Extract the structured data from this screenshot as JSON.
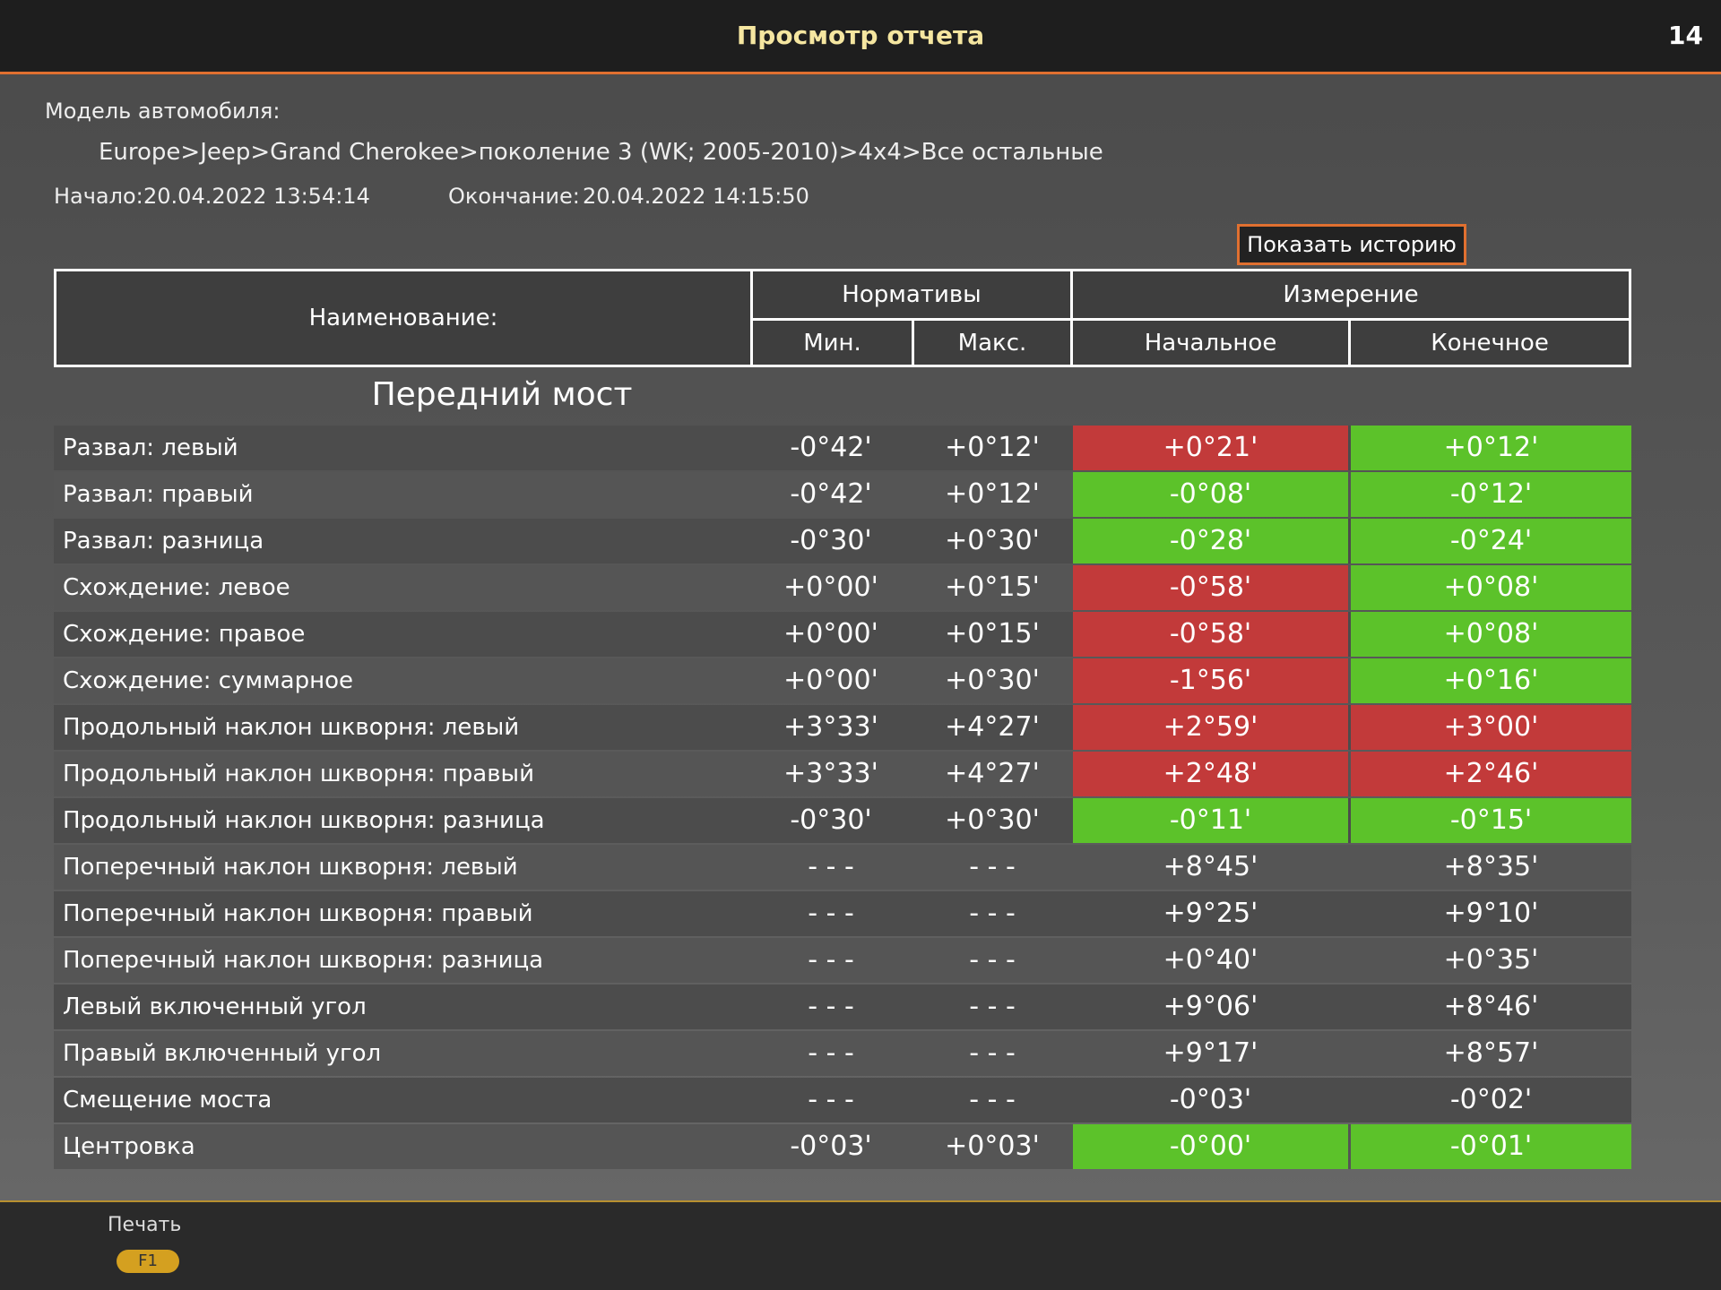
{
  "header": {
    "title": "Просмотр отчета",
    "clock": "14"
  },
  "info": {
    "model_label": "Модель автомобиля:",
    "model_path": "Europe>Jeep>Grand Cherokee>поколение 3 (WK; 2005-2010)>4x4>Все остальные",
    "start_label": "Начало:",
    "start_value": "20.04.2022 13:54:14",
    "end_label": "Окончание:",
    "end_value": "20.04.2022 14:15:50",
    "history_button": "Показать историю"
  },
  "table": {
    "columns": {
      "name": "Наименование:",
      "norms": "Нормативы",
      "min": "Мин.",
      "max": "Макс.",
      "measurement": "Измерение",
      "initial": "Начальное",
      "final": "Конечное"
    },
    "section": "Передний мост",
    "rows": [
      {
        "name": "Развал: левый",
        "min": "-0°42'",
        "max": "+0°12'",
        "initial": "+0°21'",
        "final": "+0°12'",
        "initial_color": "#c23a3a",
        "final_color": "#5cc22a"
      },
      {
        "name": "Развал: правый",
        "min": "-0°42'",
        "max": "+0°12'",
        "initial": "-0°08'",
        "final": "-0°12'",
        "initial_color": "#5cc22a",
        "final_color": "#5cc22a"
      },
      {
        "name": "Развал: разница",
        "min": "-0°30'",
        "max": "+0°30'",
        "initial": "-0°28'",
        "final": "-0°24'",
        "initial_color": "#5cc22a",
        "final_color": "#5cc22a"
      },
      {
        "name": "Схождение: левое",
        "min": "+0°00'",
        "max": "+0°15'",
        "initial": "-0°58'",
        "final": "+0°08'",
        "initial_color": "#c23a3a",
        "final_color": "#5cc22a"
      },
      {
        "name": "Схождение: правое",
        "min": "+0°00'",
        "max": "+0°15'",
        "initial": "-0°58'",
        "final": "+0°08'",
        "initial_color": "#c23a3a",
        "final_color": "#5cc22a"
      },
      {
        "name": "Схождение: суммарное",
        "min": "+0°00'",
        "max": "+0°30'",
        "initial": "-1°56'",
        "final": "+0°16'",
        "initial_color": "#c23a3a",
        "final_color": "#5cc22a"
      },
      {
        "name": "Продольный наклон шкворня: левый",
        "min": "+3°33'",
        "max": "+4°27'",
        "initial": "+2°59'",
        "final": "+3°00'",
        "initial_color": "#c23a3a",
        "final_color": "#c23a3a"
      },
      {
        "name": "Продольный наклон шкворня: правый",
        "min": "+3°33'",
        "max": "+4°27'",
        "initial": "+2°48'",
        "final": "+2°46'",
        "initial_color": "#c23a3a",
        "final_color": "#c23a3a"
      },
      {
        "name": "Продольный наклон шкворня: разница",
        "min": "-0°30'",
        "max": "+0°30'",
        "initial": "-0°11'",
        "final": "-0°15'",
        "initial_color": "#5cc22a",
        "final_color": "#5cc22a"
      },
      {
        "name": "Поперечный наклон шкворня: левый",
        "min": "- - -",
        "max": "- - -",
        "initial": "+8°45'",
        "final": "+8°35'"
      },
      {
        "name": "Поперечный наклон шкворня: правый",
        "min": "- - -",
        "max": "- - -",
        "initial": "+9°25'",
        "final": "+9°10'"
      },
      {
        "name": "Поперечный наклон шкворня: разница",
        "min": "- - -",
        "max": "- - -",
        "initial": "+0°40'",
        "final": "+0°35'"
      },
      {
        "name": "Левый включенный угол",
        "min": "- - -",
        "max": "- - -",
        "initial": "+9°06'",
        "final": "+8°46'"
      },
      {
        "name": "Правый включенный угол",
        "min": "- - -",
        "max": "- - -",
        "initial": "+9°17'",
        "final": "+8°57'"
      },
      {
        "name": "Смещение моста",
        "min": "- - -",
        "max": "- - -",
        "initial": "-0°03'",
        "final": "-0°02'"
      },
      {
        "name": "Центровка",
        "min": "-0°03'",
        "max": "+0°03'",
        "initial": "-0°00'",
        "final": "-0°01'",
        "initial_color": "#5cc22a",
        "final_color": "#5cc22a"
      }
    ]
  },
  "footer": {
    "print_label": "Печать",
    "print_key": "F1"
  }
}
